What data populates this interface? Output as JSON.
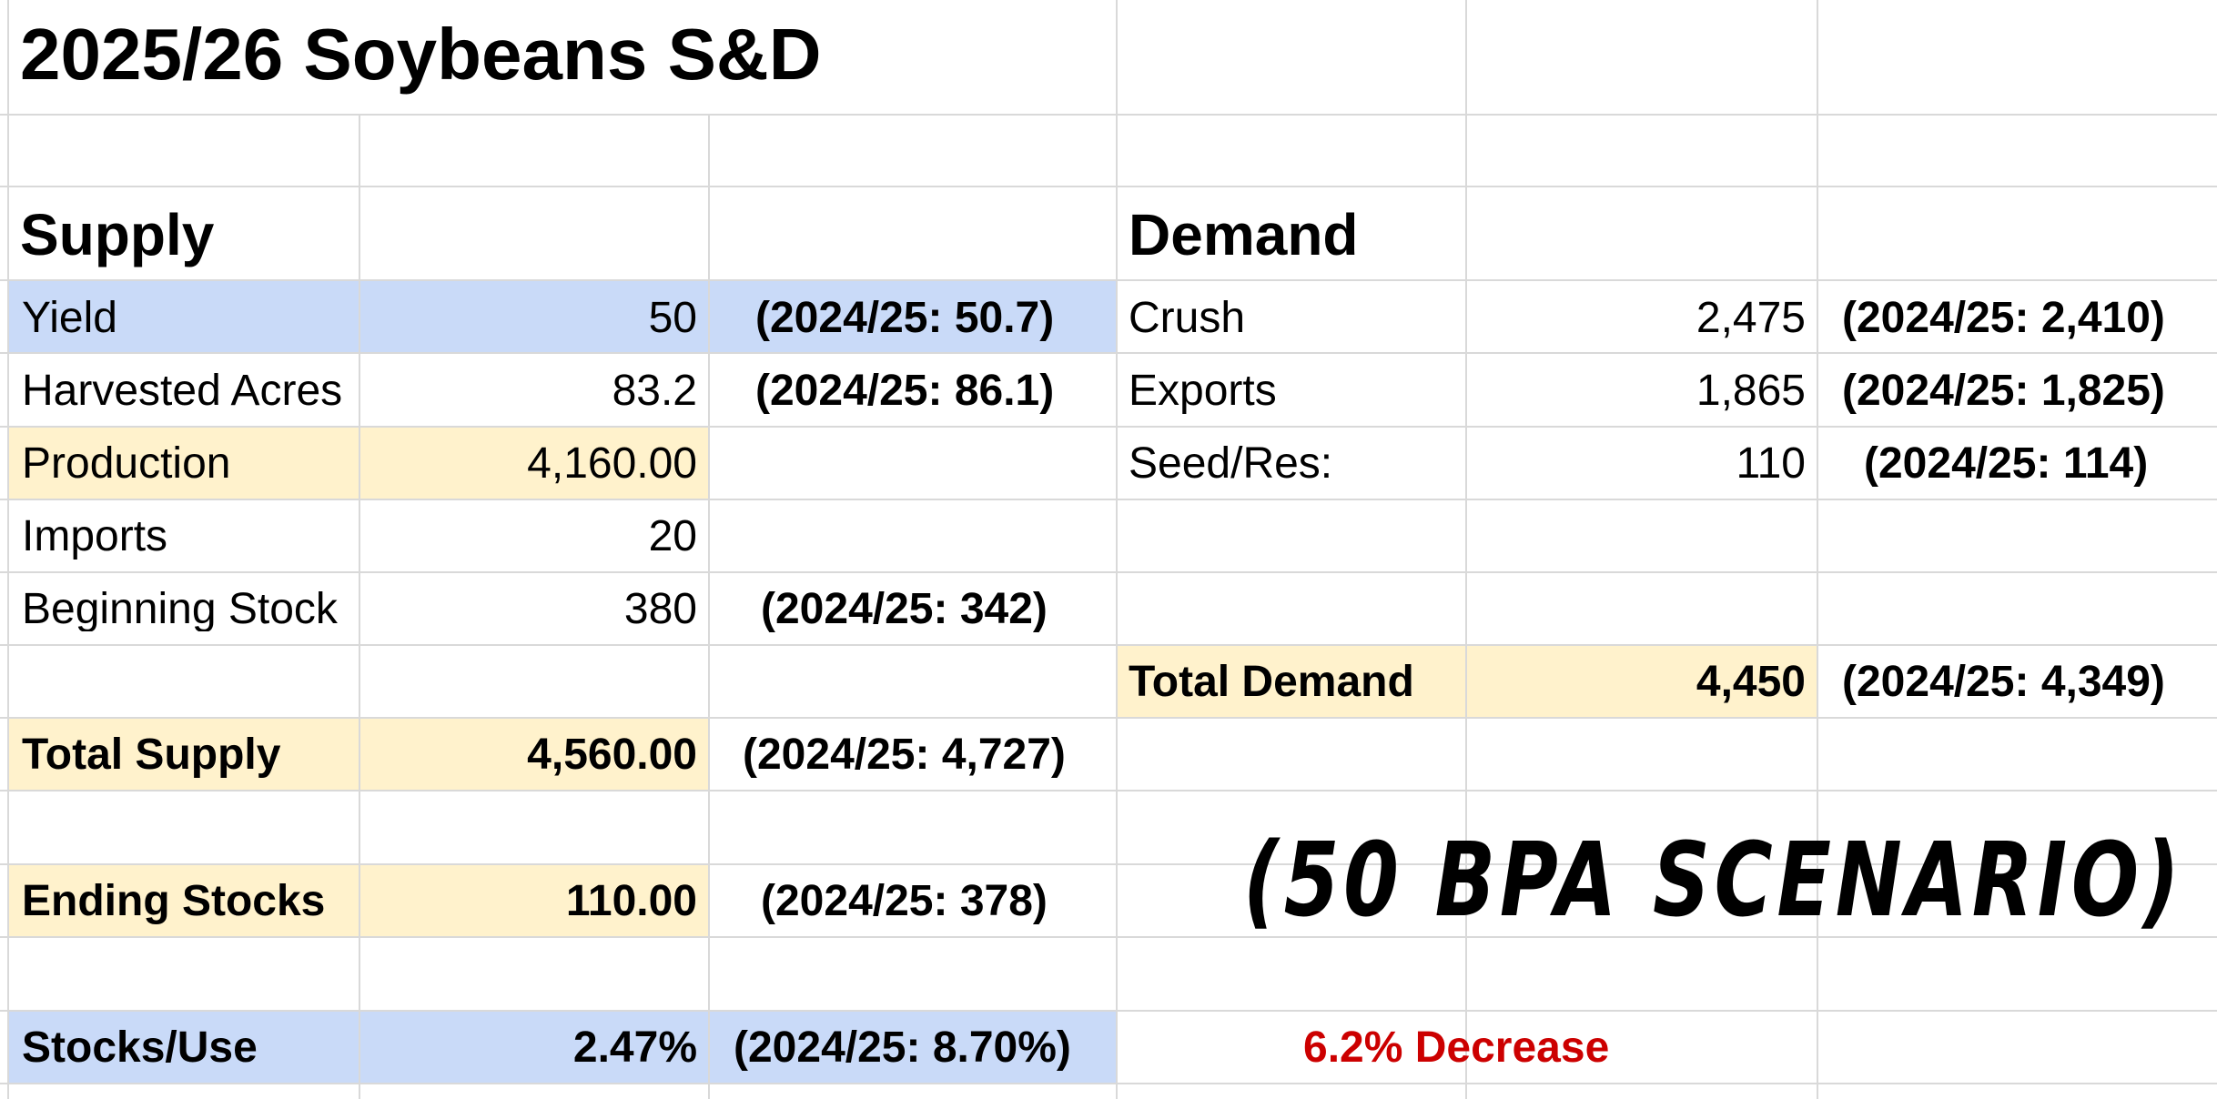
{
  "title": "2025/26 Soybeans S&D",
  "colors": {
    "highlight_blue": "#c9daf8",
    "highlight_yellow": "#fff2cc",
    "accent_red": "#cc0000",
    "gridline": "#d9d9d9"
  },
  "supply": {
    "heading": "Supply",
    "yield": {
      "label": "Yield",
      "value": "50",
      "note": "(2024/25: 50.7)"
    },
    "harvested_acres": {
      "label": "Harvested Acres",
      "value": "83.2",
      "note": "(2024/25: 86.1)"
    },
    "production": {
      "label": "Production",
      "value": "4,160.00"
    },
    "imports": {
      "label": "Imports",
      "value": "20"
    },
    "beginning_stock": {
      "label": "Beginning Stock",
      "value": "380",
      "note": "(2024/25: 342)"
    },
    "total_supply": {
      "label": "Total Supply",
      "value": "4,560.00",
      "note": "(2024/25: 4,727)"
    },
    "ending_stocks": {
      "label": "Ending Stocks",
      "value": "110.00",
      "note": "(2024/25: 378)"
    },
    "stocks_use": {
      "label": "Stocks/Use",
      "value": "2.47%",
      "note": "(2024/25: 8.70%)"
    }
  },
  "demand": {
    "heading": "Demand",
    "crush": {
      "label": "Crush",
      "value": "2,475",
      "note": "(2024/25: 2,410)"
    },
    "exports": {
      "label": "Exports",
      "value": "1,865",
      "note": "(2024/25: 1,825)"
    },
    "seed_res": {
      "label": "Seed/Res:",
      "value": "110",
      "note": "(2024/25: 114)"
    },
    "total_demand": {
      "label": "Total Demand",
      "value": "4,450",
      "note": "(2024/25: 4,349)"
    }
  },
  "scenario_label": "(50 BPA SCENARIO)",
  "change_note": "6.2% Decrease"
}
